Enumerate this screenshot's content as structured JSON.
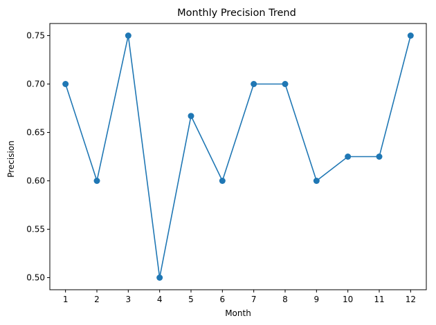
{
  "chart_data": {
    "type": "line",
    "title": "Monthly Precision Trend",
    "xlabel": "Month",
    "ylabel": "Precision",
    "x": [
      1,
      2,
      3,
      4,
      5,
      6,
      7,
      8,
      9,
      10,
      11,
      12
    ],
    "x_ticks": [
      "1",
      "2",
      "3",
      "4",
      "5",
      "6",
      "7",
      "8",
      "9",
      "10",
      "11",
      "12"
    ],
    "y_ticks": [
      "0.50",
      "0.55",
      "0.60",
      "0.65",
      "0.70",
      "0.75"
    ],
    "y_tick_values": [
      0.5,
      0.55,
      0.6,
      0.65,
      0.7,
      0.75
    ],
    "series": [
      {
        "values": [
          0.7,
          0.6,
          0.75,
          0.5,
          0.667,
          0.6,
          0.7,
          0.7,
          0.6,
          0.625,
          0.625,
          0.75
        ],
        "color": "#1f77b4",
        "marker": "circle"
      }
    ],
    "xlim": [
      0.5,
      12.5
    ],
    "ylim": [
      0.4875,
      0.7625
    ],
    "grid": false,
    "legend": "none"
  }
}
